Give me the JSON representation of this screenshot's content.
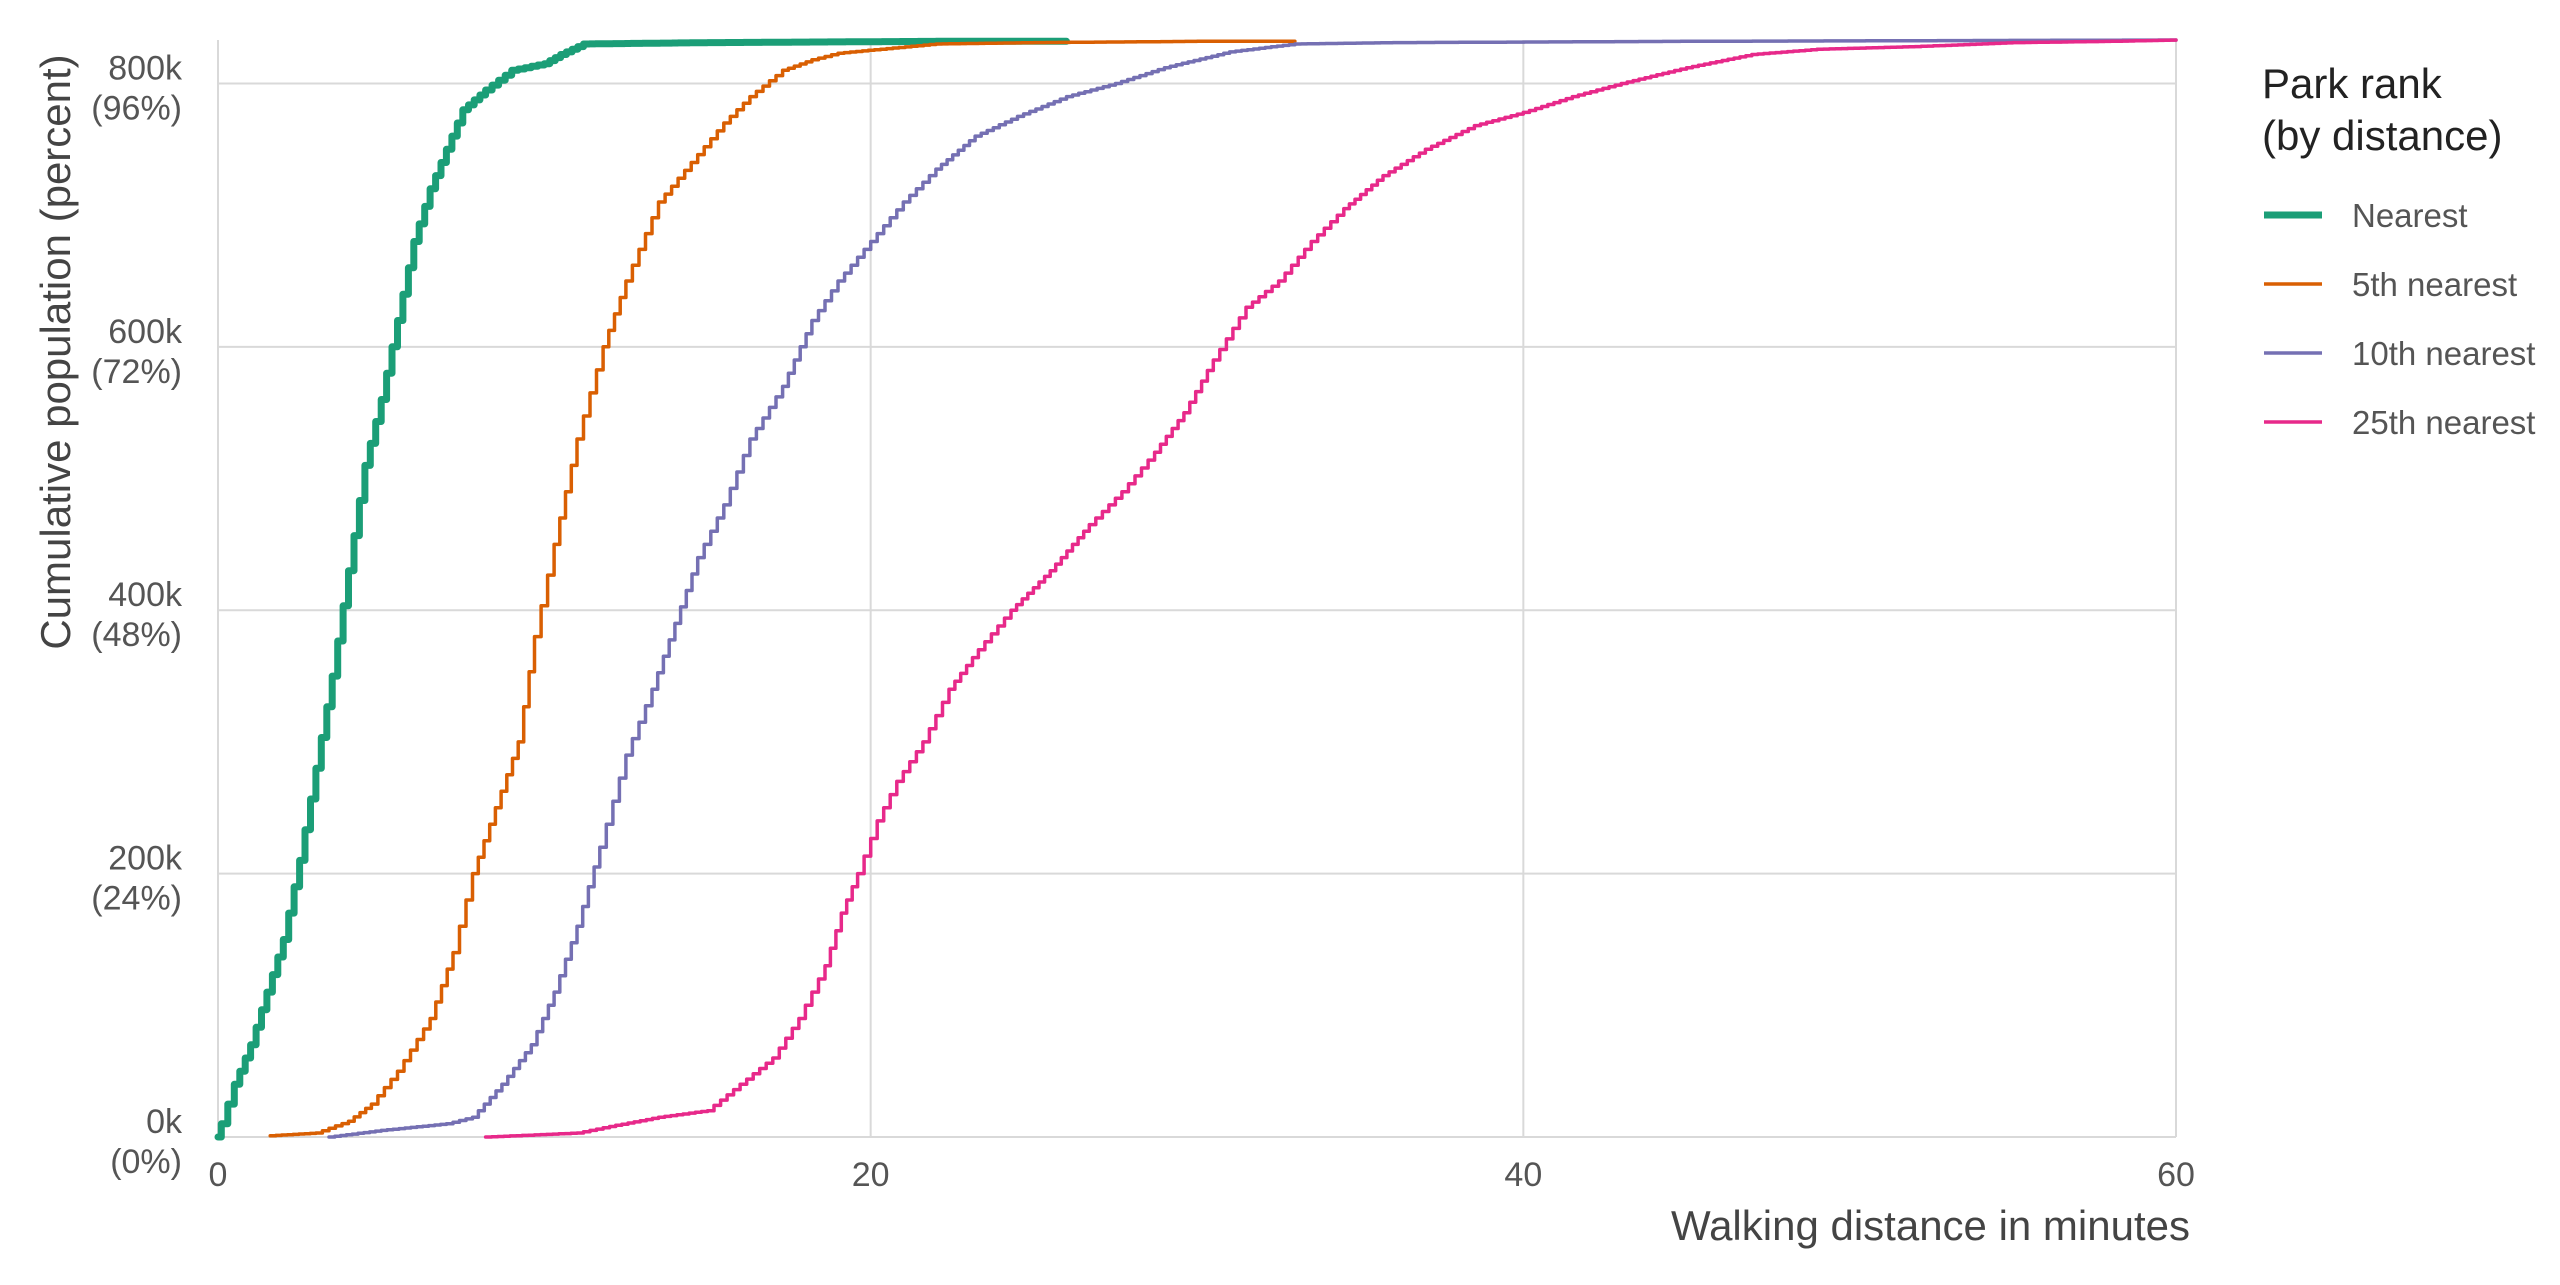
{
  "chart_data": {
    "type": "line",
    "xlabel": "Walking distance in minutes",
    "ylabel": "Cumulative population (percent)",
    "xlim": [
      0,
      60
    ],
    "ylim": [
      0,
      833000
    ],
    "x_ticks": [
      {
        "value": 0,
        "label": "0"
      },
      {
        "value": 20,
        "label": "20"
      },
      {
        "value": 40,
        "label": "40"
      },
      {
        "value": 60,
        "label": "60"
      }
    ],
    "y_ticks": [
      {
        "value": 0,
        "label": "0k",
        "sublabel": "(0%)"
      },
      {
        "value": 200000,
        "label": "200k",
        "sublabel": "(24%)"
      },
      {
        "value": 400000,
        "label": "400k",
        "sublabel": "(48%)"
      },
      {
        "value": 600000,
        "label": "600k",
        "sublabel": "(72%)"
      },
      {
        "value": 800000,
        "label": "800k",
        "sublabel": "(96%)"
      }
    ],
    "grid": true,
    "legend": {
      "title_lines": [
        "Park rank",
        "(by distance)"
      ],
      "position": "right"
    },
    "series": [
      {
        "name": "Nearest",
        "color": "#1b9e77",
        "width": "thick",
        "points": [
          [
            0,
            0
          ],
          [
            0.1,
            10000
          ],
          [
            0.5,
            40000
          ],
          [
            1,
            70000
          ],
          [
            1.5,
            110000
          ],
          [
            2,
            150000
          ],
          [
            2.5,
            210000
          ],
          [
            3,
            280000
          ],
          [
            3.5,
            350000
          ],
          [
            4,
            430000
          ],
          [
            4.5,
            510000
          ],
          [
            5,
            560000
          ],
          [
            5.5,
            620000
          ],
          [
            6,
            680000
          ],
          [
            6.5,
            720000
          ],
          [
            7,
            750000
          ],
          [
            7.5,
            780000
          ],
          [
            8.2,
            795000
          ],
          [
            9,
            810000
          ],
          [
            10,
            815000
          ],
          [
            10.5,
            822000
          ],
          [
            11.2,
            830000
          ],
          [
            15,
            831000
          ],
          [
            22,
            832000
          ],
          [
            26,
            832000
          ]
        ]
      },
      {
        "name": "5th nearest",
        "color": "#d95f02",
        "width": "normal",
        "points": [
          [
            1.6,
            1000
          ],
          [
            3,
            3000
          ],
          [
            4,
            12000
          ],
          [
            4.7,
            25000
          ],
          [
            5.5,
            50000
          ],
          [
            6.5,
            90000
          ],
          [
            7.2,
            140000
          ],
          [
            7.8,
            200000
          ],
          [
            8.5,
            250000
          ],
          [
            9.2,
            300000
          ],
          [
            9.7,
            380000
          ],
          [
            10.3,
            450000
          ],
          [
            11,
            530000
          ],
          [
            11.8,
            600000
          ],
          [
            12.5,
            650000
          ],
          [
            13.5,
            710000
          ],
          [
            14.5,
            740000
          ],
          [
            15.5,
            770000
          ],
          [
            16.3,
            790000
          ],
          [
            17.3,
            810000
          ],
          [
            18.2,
            818000
          ],
          [
            19,
            823000
          ],
          [
            20.3,
            826000
          ],
          [
            22,
            830000
          ],
          [
            25,
            831000
          ],
          [
            30,
            832000
          ],
          [
            33,
            832000
          ]
        ]
      },
      {
        "name": "10th nearest",
        "color": "#7570b3",
        "width": "normal",
        "points": [
          [
            3.4,
            0
          ],
          [
            5,
            5000
          ],
          [
            7,
            10000
          ],
          [
            7.8,
            15000
          ],
          [
            8.7,
            40000
          ],
          [
            9.6,
            70000
          ],
          [
            10.3,
            110000
          ],
          [
            11,
            160000
          ],
          [
            11.7,
            220000
          ],
          [
            12.5,
            290000
          ],
          [
            13.3,
            340000
          ],
          [
            14,
            390000
          ],
          [
            14.7,
            440000
          ],
          [
            15.5,
            480000
          ],
          [
            16.3,
            530000
          ],
          [
            17.3,
            570000
          ],
          [
            18.2,
            620000
          ],
          [
            19,
            650000
          ],
          [
            20,
            680000
          ],
          [
            21,
            710000
          ],
          [
            22,
            735000
          ],
          [
            23.2,
            760000
          ],
          [
            24.5,
            775000
          ],
          [
            26,
            790000
          ],
          [
            27.5,
            800000
          ],
          [
            29,
            812000
          ],
          [
            31,
            824000
          ],
          [
            33,
            830000
          ],
          [
            36,
            831000
          ],
          [
            45,
            832000
          ],
          [
            60,
            833000
          ]
        ]
      },
      {
        "name": "25th nearest",
        "color": "#e7298a",
        "width": "normal",
        "points": [
          [
            8.2,
            0
          ],
          [
            11,
            3000
          ],
          [
            12,
            8000
          ],
          [
            13.5,
            15000
          ],
          [
            15,
            20000
          ],
          [
            16,
            40000
          ],
          [
            17,
            60000
          ],
          [
            17.8,
            90000
          ],
          [
            18.6,
            130000
          ],
          [
            19.1,
            170000
          ],
          [
            19.6,
            200000
          ],
          [
            20.2,
            240000
          ],
          [
            20.8,
            270000
          ],
          [
            21.6,
            300000
          ],
          [
            22.4,
            340000
          ],
          [
            23.3,
            370000
          ],
          [
            24.3,
            400000
          ],
          [
            25.5,
            430000
          ],
          [
            26.7,
            465000
          ],
          [
            27.7,
            490000
          ],
          [
            28.7,
            520000
          ],
          [
            29.6,
            550000
          ],
          [
            30.5,
            590000
          ],
          [
            31.5,
            630000
          ],
          [
            32.5,
            650000
          ],
          [
            33.5,
            680000
          ],
          [
            34.5,
            705000
          ],
          [
            35.7,
            730000
          ],
          [
            37,
            750000
          ],
          [
            38.5,
            768000
          ],
          [
            40,
            778000
          ],
          [
            41.5,
            790000
          ],
          [
            43,
            800000
          ],
          [
            45,
            812000
          ],
          [
            47,
            822000
          ],
          [
            49,
            826000
          ],
          [
            52,
            828000
          ],
          [
            55,
            831000
          ],
          [
            58,
            832000
          ],
          [
            60,
            833000
          ]
        ]
      }
    ]
  }
}
